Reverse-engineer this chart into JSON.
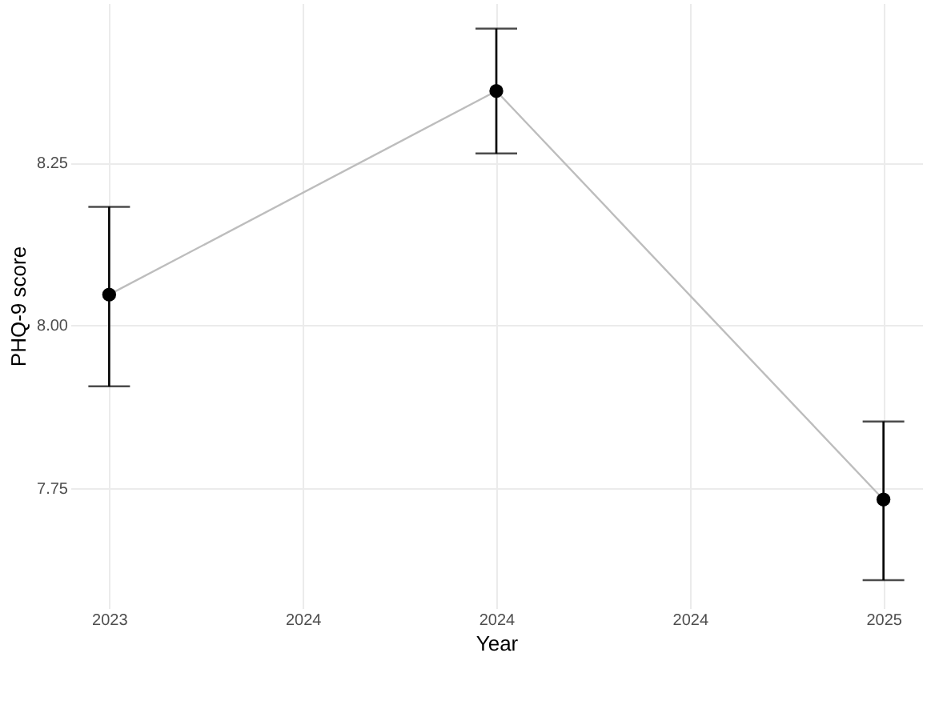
{
  "chart_data": {
    "type": "line",
    "xlabel": "Year",
    "ylabel": "PHQ-9 score",
    "x": [
      2023,
      2024,
      2025
    ],
    "series": [
      {
        "color": "#bdbdbd",
        "values": [
          8.047,
          8.36,
          7.732
        ],
        "errors": [
          [
            7.906,
            8.182
          ],
          [
            8.264,
            8.456
          ],
          [
            7.608,
            7.852
          ]
        ]
      }
    ],
    "xlim": [
      2022.9,
      2025.1
    ],
    "xticks": [
      2023,
      {
        "value": 2023.5,
        "label": "2024"
      },
      2024,
      {
        "value": 2024.5,
        "label": "2024"
      },
      2025
    ],
    "ylim": [
      7.565,
      8.495
    ],
    "yticks": [
      7.75,
      {
        "value": 8.0,
        "label": "8.00"
      },
      8.25
    ],
    "marker": "circle",
    "line_style": "solid",
    "grid": true
  }
}
